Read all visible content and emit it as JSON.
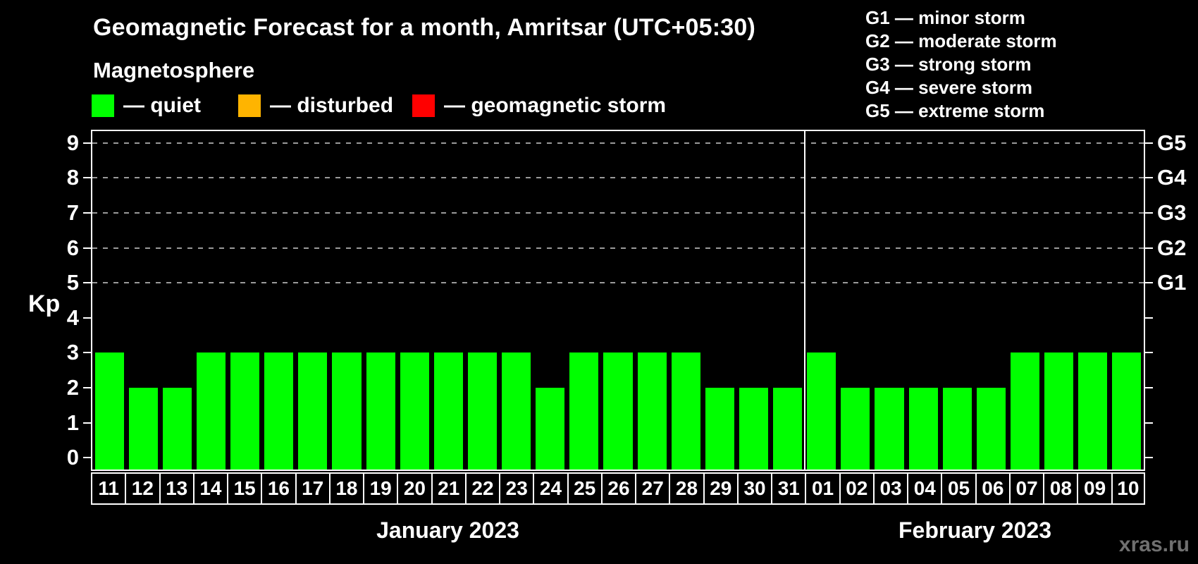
{
  "title": "Geomagnetic Forecast for a month, Amritsar (UTC+05:30)",
  "subtitle": "Magnetosphere",
  "legend": {
    "items": [
      {
        "dash": "—",
        "label": "quiet",
        "color": "#00ff00"
      },
      {
        "dash": "—",
        "label": "disturbed",
        "color": "#ffb400"
      },
      {
        "dash": "—",
        "label": "geomagnetic storm",
        "color": "#ff0000"
      }
    ]
  },
  "storm_scale": [
    "G1 — minor storm",
    "G2 — moderate storm",
    "G3 — strong storm",
    "G4 — severe storm",
    "G5 — extreme storm"
  ],
  "watermark": "xras.ru",
  "chart_data": {
    "type": "bar",
    "title": "Geomagnetic Forecast for a month, Amritsar (UTC+05:30)",
    "ylabel": "Kp",
    "ylim": [
      0,
      9
    ],
    "yticks": [
      0,
      1,
      2,
      3,
      4,
      5,
      6,
      7,
      8,
      9
    ],
    "grid_lines": [
      5,
      6,
      7,
      8,
      9
    ],
    "grid_style": "dashed",
    "legend_position": "top",
    "right_axis": [
      {
        "value": 5,
        "label": "G1"
      },
      {
        "value": 6,
        "label": "G2"
      },
      {
        "value": 7,
        "label": "G3"
      },
      {
        "value": 8,
        "label": "G4"
      },
      {
        "value": 9,
        "label": "G5"
      }
    ],
    "color_rule": {
      "quiet_max_kp": 3,
      "disturbed_max_kp": 4,
      "storm_min_kp": 5
    },
    "months": [
      {
        "label": "January 2023",
        "days": [
          "11",
          "12",
          "13",
          "14",
          "15",
          "16",
          "17",
          "18",
          "19",
          "20",
          "21",
          "22",
          "23",
          "24",
          "25",
          "26",
          "27",
          "28",
          "29",
          "30",
          "31"
        ],
        "values": [
          3,
          2,
          2,
          3,
          3,
          3,
          3,
          3,
          3,
          3,
          3,
          3,
          3,
          2,
          3,
          3,
          3,
          3,
          2,
          2,
          2
        ]
      },
      {
        "label": "February 2023",
        "days": [
          "01",
          "02",
          "03",
          "04",
          "05",
          "06",
          "07",
          "08",
          "09",
          "10"
        ],
        "values": [
          3,
          2,
          2,
          2,
          2,
          2,
          3,
          3,
          3,
          3
        ]
      }
    ]
  }
}
